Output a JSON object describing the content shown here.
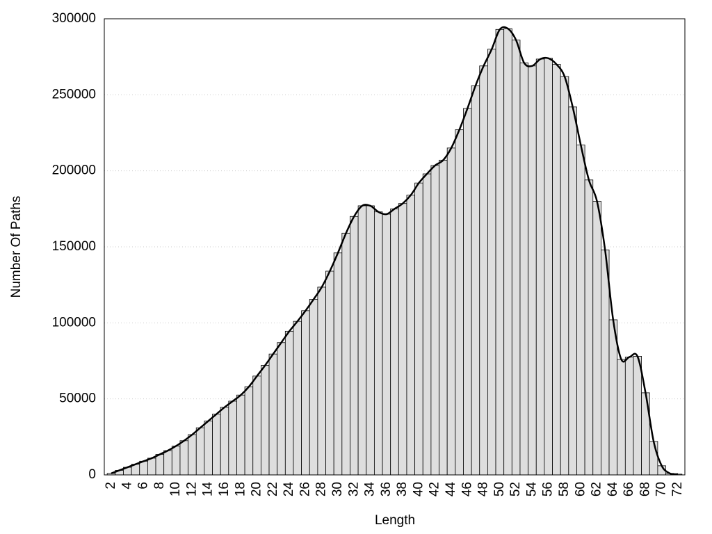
{
  "chart_data": {
    "type": "bar",
    "x_label": "Length",
    "y_label": "Number Of Paths",
    "categories": [
      "2",
      null,
      "4",
      null,
      "6",
      null,
      "8",
      null,
      "10",
      null,
      "12",
      null,
      "14",
      null,
      "16",
      null,
      "18",
      null,
      "20",
      null,
      "22",
      null,
      "24",
      null,
      "26",
      null,
      "28",
      null,
      "30",
      null,
      "32",
      null,
      "34",
      null,
      "36",
      null,
      "38",
      null,
      "40",
      null,
      "42",
      null,
      "44",
      null,
      "46",
      null,
      "48",
      null,
      "50",
      null,
      "52",
      null,
      "54",
      null,
      "56",
      null,
      "58",
      null,
      "60",
      null,
      "62",
      null,
      "64",
      null,
      "66",
      null,
      "68",
      null,
      "70",
      null,
      "72"
    ],
    "values": [
      1000,
      3000,
      5000,
      7000,
      9000,
      11000,
      13500,
      16000,
      19000,
      22500,
      26500,
      31000,
      35500,
      40000,
      44500,
      48500,
      52500,
      58000,
      65000,
      72000,
      79500,
      87000,
      94500,
      101000,
      108000,
      115500,
      123500,
      134000,
      146000,
      159000,
      170000,
      177000,
      177000,
      173000,
      171500,
      175000,
      178500,
      184000,
      192000,
      198000,
      203500,
      207000,
      215000,
      227000,
      241000,
      256000,
      269000,
      280000,
      293000,
      293500,
      286000,
      271000,
      269000,
      273500,
      274000,
      270000,
      262000,
      242000,
      217000,
      194000,
      180000,
      148000,
      102000,
      76000,
      77500,
      78000,
      54000,
      22000,
      6000,
      1000,
      500
    ],
    "color": "#dedede",
    "line_color": "#000000",
    "ylim": [
      0,
      300000
    ],
    "yticks": [
      0,
      50000,
      100000,
      150000,
      200000,
      250000,
      300000
    ],
    "grid": true
  }
}
